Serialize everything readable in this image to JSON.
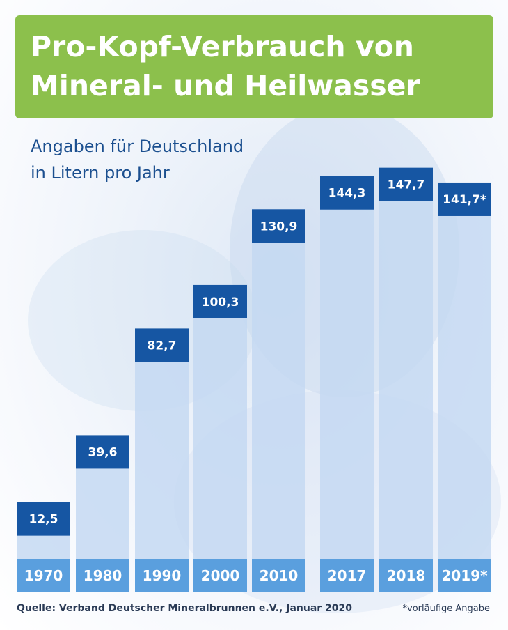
{
  "header": {
    "title_line1": "Pro-Kopf-Verbrauch von",
    "title_line2": "Mineral- und Heilwasser",
    "subtitle_line1": "Angaben für Deutschland",
    "subtitle_line2": "in Litern pro Jahr"
  },
  "footer": {
    "source": "Quelle: Verband Deutscher Mineralbrunnen e.V., Januar 2020",
    "note": "*vorläufige Angabe"
  },
  "colors": {
    "title_background": "#8cc04c",
    "value_box": "#1656a3",
    "bar_fill": "#c3d8f1",
    "year_box": "#5a9fde",
    "subtitle_text": "#1b4f8f"
  },
  "chart_data": {
    "type": "bar",
    "title": "Pro-Kopf-Verbrauch von Mineral- und Heilwasser",
    "subtitle": "Angaben für Deutschland in Litern pro Jahr",
    "xlabel": "",
    "ylabel": "",
    "categories": [
      "1970",
      "1980",
      "1990",
      "2000",
      "2010",
      "2017",
      "2018",
      "2019*"
    ],
    "values": [
      12.5,
      39.6,
      82.7,
      100.3,
      130.9,
      144.3,
      147.7,
      141.7
    ],
    "value_labels": [
      "12,5",
      "39,6",
      "82,7",
      "100,3",
      "130,9",
      "144,3",
      "147,7",
      "141,7*"
    ],
    "ylim": [
      0,
      160
    ],
    "grid": false,
    "legend": "none"
  }
}
